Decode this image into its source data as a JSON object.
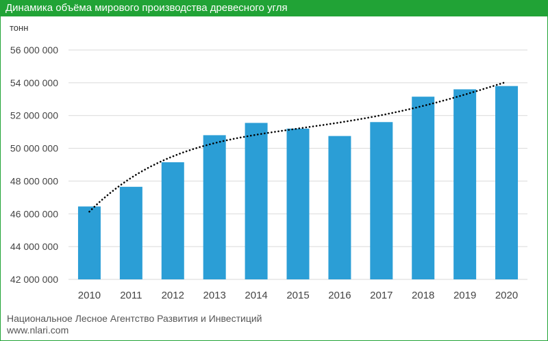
{
  "chart_data": {
    "type": "bar",
    "title": "Динамика объёма мирового производства древесного угля",
    "ylabel": "тонн",
    "xlabel": "",
    "categories": [
      "2010",
      "2011",
      "2012",
      "2013",
      "2014",
      "2015",
      "2016",
      "2017",
      "2018",
      "2019",
      "2020"
    ],
    "values": [
      46450000,
      47650000,
      49150000,
      50800000,
      51550000,
      51200000,
      50750000,
      51600000,
      53150000,
      53600000,
      53800000
    ],
    "ylim": [
      42000000,
      56000000
    ],
    "yticks": [
      42000000,
      44000000,
      46000000,
      48000000,
      50000000,
      52000000,
      54000000,
      56000000
    ],
    "ytick_labels": [
      "42 000 000",
      "44 000 000",
      "46 000 000",
      "48 000 000",
      "50 000 000",
      "52 000 000",
      "54 000 000",
      "56 000 000"
    ],
    "trendline": {
      "style": "dotted",
      "type": "polynomial"
    },
    "grid": true,
    "colors": {
      "bar": "#2b9ed6",
      "header": "#21a336",
      "grid": "#d9d9d9",
      "trend": "#000000"
    }
  },
  "footer": {
    "organization": "Национальное Лесное Агентство Развития и Инвестиций",
    "website": "www.nlari.com"
  }
}
